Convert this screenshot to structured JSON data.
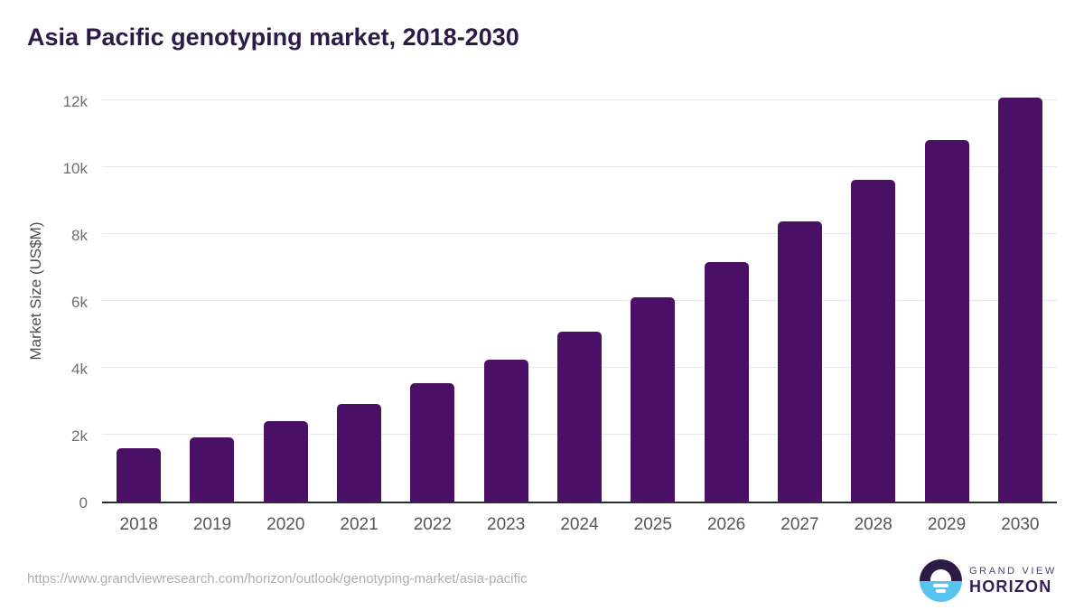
{
  "title": "Asia Pacific genotyping market, 2018-2030",
  "chart_data": {
    "type": "bar",
    "title": "Asia Pacific genotyping market, 2018-2030",
    "categories": [
      "2018",
      "2019",
      "2020",
      "2021",
      "2022",
      "2023",
      "2024",
      "2025",
      "2026",
      "2027",
      "2028",
      "2029",
      "2030"
    ],
    "values": [
      1600,
      1920,
      2400,
      2920,
      3540,
      4250,
      5080,
      6100,
      7160,
      8380,
      9620,
      10810,
      12080
    ],
    "xlabel": "",
    "ylabel": "Market Size (US$M)",
    "ylim": [
      0,
      12000
    ],
    "yticks": [
      0,
      2000,
      4000,
      6000,
      8000,
      10000,
      12000
    ],
    "ytick_labels": [
      "0",
      "2k",
      "4k",
      "6k",
      "8k",
      "10k",
      "12k"
    ],
    "grid": true,
    "legend": "none",
    "bar_color": "#4a1066"
  },
  "footer": {
    "source_url": "https://www.grandviewresearch.com/horizon/outlook/genotyping-market/asia-pacific",
    "logo": {
      "line1": "GRAND VIEW",
      "line2": "HORIZON",
      "mark": "sunrise-horizon-icon"
    }
  },
  "colors": {
    "bar": "#4a1066",
    "title_text": "#2e1a47",
    "gridline": "#e8e8e8",
    "axis_line": "#2d2d2d",
    "tick_text": "#6e6e6e",
    "url_text": "#b0aeae",
    "logo_purple": "#2d1b47",
    "logo_blue": "#57c4f0"
  }
}
